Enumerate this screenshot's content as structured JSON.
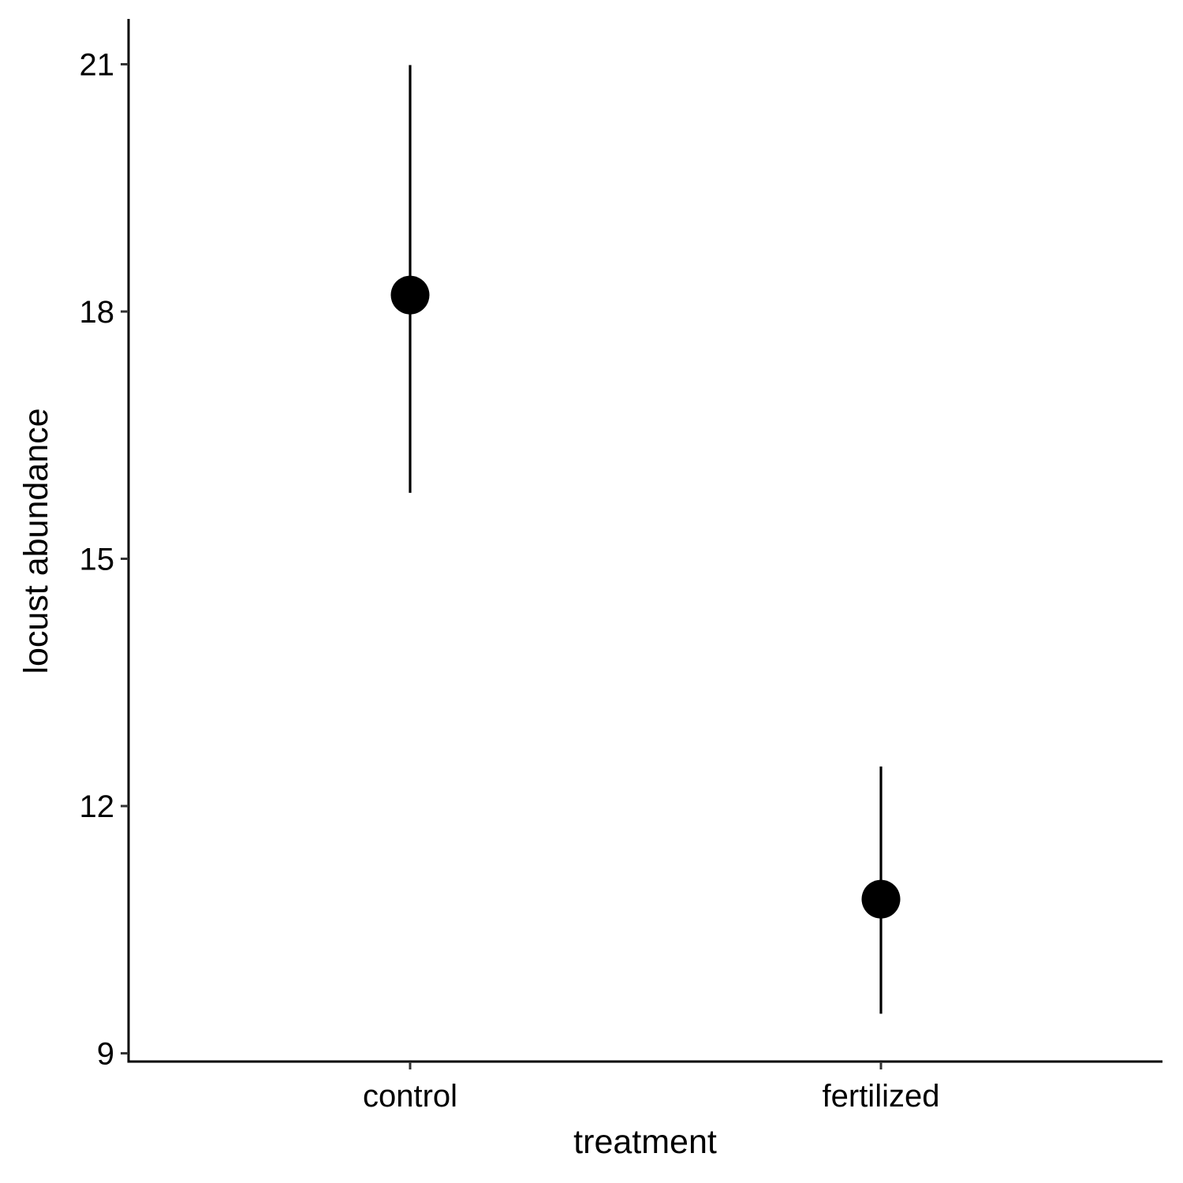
{
  "chart_data": {
    "type": "scatter",
    "xlabel": "treatment",
    "ylabel": "locust abundance",
    "categories": [
      "control",
      "fertilized"
    ],
    "series": [
      {
        "points": [
          {
            "x": "control",
            "y": 18.2,
            "ymin": 15.8,
            "ymax": 20.99
          },
          {
            "x": "fertilized",
            "y": 10.87,
            "ymin": 9.48,
            "ymax": 12.48
          }
        ]
      }
    ],
    "yticks": [
      9,
      12,
      15,
      18,
      21
    ],
    "ylim": [
      8.9,
      21.55
    ],
    "grid": false,
    "legend": "none",
    "colors": {
      "points": "#000000",
      "errorbars": "#000000",
      "axes": "#000000"
    }
  }
}
